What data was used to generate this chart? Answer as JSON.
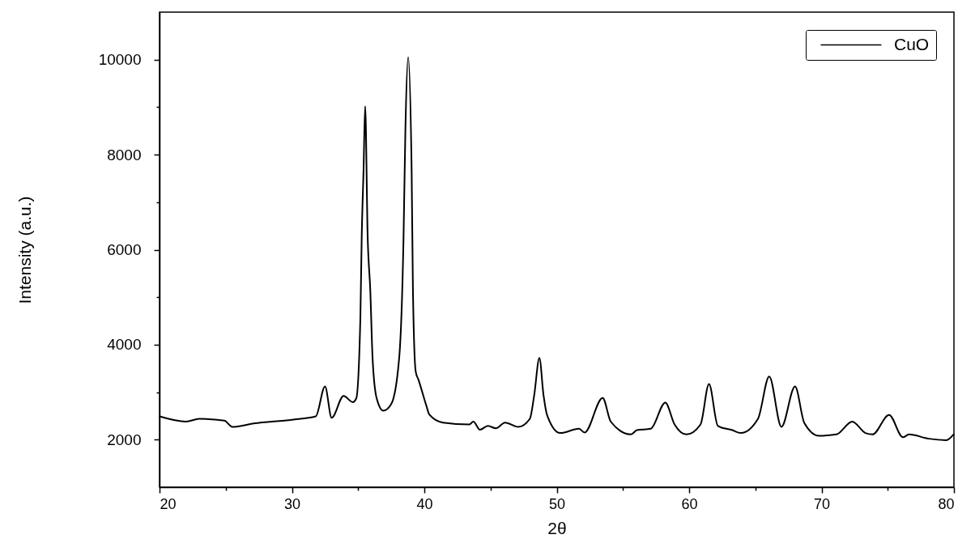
{
  "chart_data": {
    "type": "line",
    "xlabel": "2θ",
    "ylabel": "Intensity (a.u.)",
    "x": [
      20.0,
      22.0,
      23.0,
      24.9,
      25.5,
      27.1,
      30.0,
      31.8,
      32.5,
      33.0,
      33.9,
      34.6,
      34.86,
      35.17,
      35.27,
      35.41,
      35.53,
      35.72,
      35.92,
      36.09,
      36.4,
      36.9,
      37.5,
      38.1,
      38.43,
      38.57,
      38.78,
      39.04,
      39.14,
      39.35,
      39.56,
      40.17,
      40.37,
      41.4,
      43.4,
      43.7,
      44.2,
      44.8,
      45.4,
      46.1,
      47.1,
      47.97,
      48.3,
      48.69,
      49.0,
      49.28,
      50.26,
      51.68,
      52.1,
      53.47,
      54.08,
      55.6,
      56.05,
      57.1,
      58.2,
      58.9,
      59.8,
      60.86,
      61.5,
      62.17,
      63.26,
      63.9,
      65.2,
      66.05,
      66.97,
      68.0,
      68.7,
      69.81,
      71.13,
      72.32,
      73.31,
      73.85,
      75.1,
      76.15,
      76.6,
      78.1,
      79.42,
      79.97
    ],
    "series": [
      {
        "name": "CuO",
        "color": "#000000",
        "values": [
          2490,
          2380,
          2440,
          2400,
          2270,
          2340,
          2420,
          2490,
          3120,
          2460,
          2920,
          2790,
          2870,
          4570,
          6270,
          7680,
          9020,
          6270,
          5130,
          3720,
          2870,
          2610,
          2750,
          3720,
          6270,
          8530,
          10050,
          7680,
          5130,
          3430,
          3260,
          2700,
          2530,
          2360,
          2320,
          2380,
          2210,
          2290,
          2240,
          2360,
          2270,
          2440,
          2940,
          3720,
          2940,
          2510,
          2140,
          2230,
          2150,
          2880,
          2380,
          2110,
          2200,
          2230,
          2780,
          2320,
          2110,
          2320,
          3170,
          2290,
          2200,
          2140,
          2440,
          3330,
          2270,
          3120,
          2350,
          2080,
          2110,
          2380,
          2140,
          2110,
          2520,
          2050,
          2110,
          2020,
          1990,
          2110
        ]
      }
    ],
    "xlim": [
      20,
      80
    ],
    "xticks": [
      20,
      {
        "value": 25,
        "label": null
      },
      30,
      {
        "value": 35,
        "label": null
      },
      40,
      {
        "value": 45,
        "label": null
      },
      50,
      {
        "value": 55,
        "label": null
      },
      60,
      {
        "value": 65,
        "label": null
      },
      70,
      {
        "value": 75,
        "label": null
      },
      80
    ],
    "ylim": [
      1000,
      11000
    ],
    "yticks": [
      2000,
      {
        "value": 3000,
        "label": null
      },
      4000,
      {
        "value": 5000,
        "label": null
      },
      6000,
      {
        "value": 7000,
        "label": null
      },
      8000,
      {
        "value": 9000,
        "label": null
      },
      10000
    ],
    "grid": false,
    "legend": "top right",
    "marker": "none",
    "line_style": "solid"
  }
}
